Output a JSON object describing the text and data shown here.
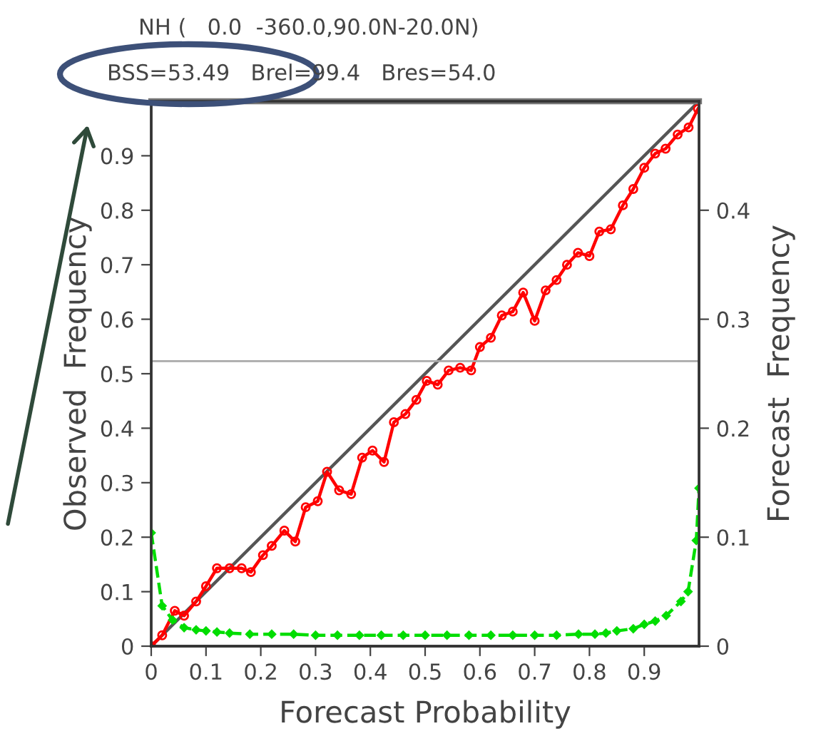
{
  "chart_data": {
    "type": "line",
    "title": "NH (   0.0  -360.0,90.0N-20.0N)",
    "subtitle": "BSS=53.49   Brel=99.4   Bres=54.0",
    "xlabel": "Forecast Probability",
    "ylabel": "Observed  Frequency",
    "y2label": "Forecast  Frequency",
    "xlim": [
      0,
      1
    ],
    "ylim": [
      0,
      1
    ],
    "y2lim": [
      0,
      0.5
    ],
    "xticks": [
      0,
      0.1,
      0.2,
      0.3,
      0.4,
      0.5,
      0.6,
      0.7,
      0.8,
      0.9
    ],
    "yticks": [
      0,
      0.1,
      0.2,
      0.3,
      0.4,
      0.5,
      0.6,
      0.7,
      0.8,
      0.9
    ],
    "y2ticks": [
      0,
      0.1,
      0.2,
      0.3,
      0.4
    ],
    "grid": false,
    "legend": false,
    "ref_lines": [
      {
        "axis": "y",
        "value": 0.523,
        "color": "#aaaaaa"
      }
    ],
    "series": [
      {
        "color": "#555555",
        "marker": "none",
        "line_style": "solid",
        "x": [
          0,
          1
        ],
        "values": [
          0,
          1
        ]
      },
      {
        "color": "#ff0000",
        "marker": "circle",
        "line_style": "solid",
        "x": [
          0,
          0.02,
          0.043,
          0.06,
          0.082,
          0.1,
          0.12,
          0.143,
          0.165,
          0.182,
          0.204,
          0.22,
          0.243,
          0.263,
          0.282,
          0.304,
          0.321,
          0.343,
          0.365,
          0.385,
          0.404,
          0.425,
          0.443,
          0.464,
          0.484,
          0.503,
          0.523,
          0.543,
          0.564,
          0.584,
          0.6,
          0.62,
          0.64,
          0.66,
          0.679,
          0.7,
          0.72,
          0.74,
          0.759,
          0.779,
          0.8,
          0.818,
          0.839,
          0.861,
          0.88,
          0.9,
          0.92,
          0.939,
          0.961,
          0.981,
          0.998
        ],
        "values": [
          0,
          0.02,
          0.065,
          0.056,
          0.082,
          0.11,
          0.143,
          0.143,
          0.143,
          0.136,
          0.167,
          0.184,
          0.212,
          0.192,
          0.255,
          0.266,
          0.32,
          0.286,
          0.279,
          0.346,
          0.359,
          0.338,
          0.411,
          0.426,
          0.452,
          0.487,
          0.48,
          0.506,
          0.511,
          0.506,
          0.549,
          0.566,
          0.607,
          0.614,
          0.649,
          0.597,
          0.653,
          0.672,
          0.7,
          0.722,
          0.716,
          0.761,
          0.765,
          0.809,
          0.839,
          0.878,
          0.904,
          0.913,
          0.939,
          0.952,
          0.986
        ]
      },
      {
        "axis": "y2",
        "color": "#00dd00",
        "marker": "diamond",
        "line_style": "dashed",
        "x": [
          0,
          0.02,
          0.039,
          0.06,
          0.082,
          0.1,
          0.12,
          0.143,
          0.18,
          0.22,
          0.26,
          0.3,
          0.34,
          0.38,
          0.42,
          0.46,
          0.5,
          0.54,
          0.58,
          0.62,
          0.66,
          0.7,
          0.74,
          0.78,
          0.81,
          0.83,
          0.85,
          0.88,
          0.9,
          0.92,
          0.94,
          0.967,
          0.98,
          0.995,
          1.0
        ],
        "values": [
          0.104,
          0.037,
          0.024,
          0.017,
          0.015,
          0.014,
          0.013,
          0.012,
          0.011,
          0.011,
          0.011,
          0.01,
          0.01,
          0.01,
          0.01,
          0.01,
          0.01,
          0.01,
          0.01,
          0.01,
          0.01,
          0.01,
          0.01,
          0.011,
          0.011,
          0.012,
          0.014,
          0.016,
          0.02,
          0.023,
          0.028,
          0.041,
          0.05,
          0.097,
          0.145
        ]
      }
    ]
  }
}
